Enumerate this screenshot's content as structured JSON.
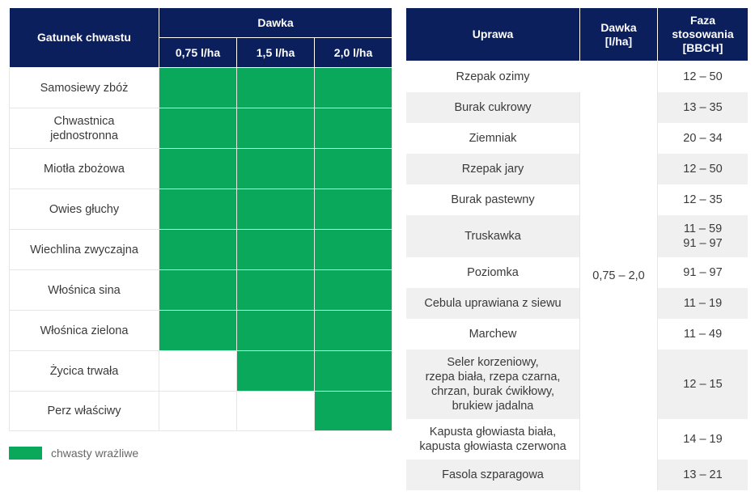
{
  "weed_table": {
    "header_species": "Gatunek chwastu",
    "header_dose": "Dawka",
    "doses": [
      "0,75 l/ha",
      "1,5 l/ha",
      "2,0 l/ha"
    ],
    "rows": [
      {
        "name": "Samosiewy zbóż",
        "sensitive": [
          true,
          true,
          true
        ]
      },
      {
        "name": "Chwastnica jednostronna",
        "sensitive": [
          true,
          true,
          true
        ]
      },
      {
        "name": "Miotła zbożowa",
        "sensitive": [
          true,
          true,
          true
        ]
      },
      {
        "name": "Owies głuchy",
        "sensitive": [
          true,
          true,
          true
        ]
      },
      {
        "name": "Wiechlina zwyczajna",
        "sensitive": [
          true,
          true,
          true
        ]
      },
      {
        "name": "Włośnica sina",
        "sensitive": [
          true,
          true,
          true
        ]
      },
      {
        "name": "Włośnica zielona",
        "sensitive": [
          true,
          true,
          true
        ]
      },
      {
        "name": "Życica trwała",
        "sensitive": [
          false,
          true,
          true
        ]
      },
      {
        "name": "Perz właściwy",
        "sensitive": [
          false,
          false,
          true
        ]
      }
    ]
  },
  "legend": {
    "label": "chwasty wrażliwe",
    "color": "#0aa85a"
  },
  "crop_table": {
    "header_crop": "Uprawa",
    "header_dose": "Dawka [l/ha]",
    "header_phase": "Faza stosowania [BBCH]",
    "dose_value": "0,75 – 2,0",
    "rows": [
      {
        "crop": "Rzepak ozimy",
        "phase": "12 – 50"
      },
      {
        "crop": "Burak cukrowy",
        "phase": "13 – 35"
      },
      {
        "crop": "Ziemniak",
        "phase": "20 – 34"
      },
      {
        "crop": "Rzepak jary",
        "phase": "12 – 50"
      },
      {
        "crop": "Burak pastewny",
        "phase": "12 – 35"
      },
      {
        "crop": "Truskawka",
        "phase": "11 – 59\n91 – 97"
      },
      {
        "crop": "Poziomka",
        "phase": "91 – 97"
      },
      {
        "crop": "Cebula uprawiana z siewu",
        "phase": "11 – 19"
      },
      {
        "crop": "Marchew",
        "phase": "11 – 49"
      },
      {
        "crop": "Seler korzeniowy,\nrzepa biała, rzepa czarna,\nchrzan, burak ćwikłowy,\nbrukiew jadalna",
        "phase": "12 – 15"
      },
      {
        "crop": "Kapusta głowiasta biała,\nkapusta głowiasta czerwona",
        "phase": "14 – 19"
      },
      {
        "crop": "Fasola szparagowa",
        "phase": "13 – 21"
      }
    ]
  },
  "colors": {
    "header_bg": "#0a1f5c",
    "sensitive": "#0aa85a",
    "stripe": "#f0f0f0"
  }
}
